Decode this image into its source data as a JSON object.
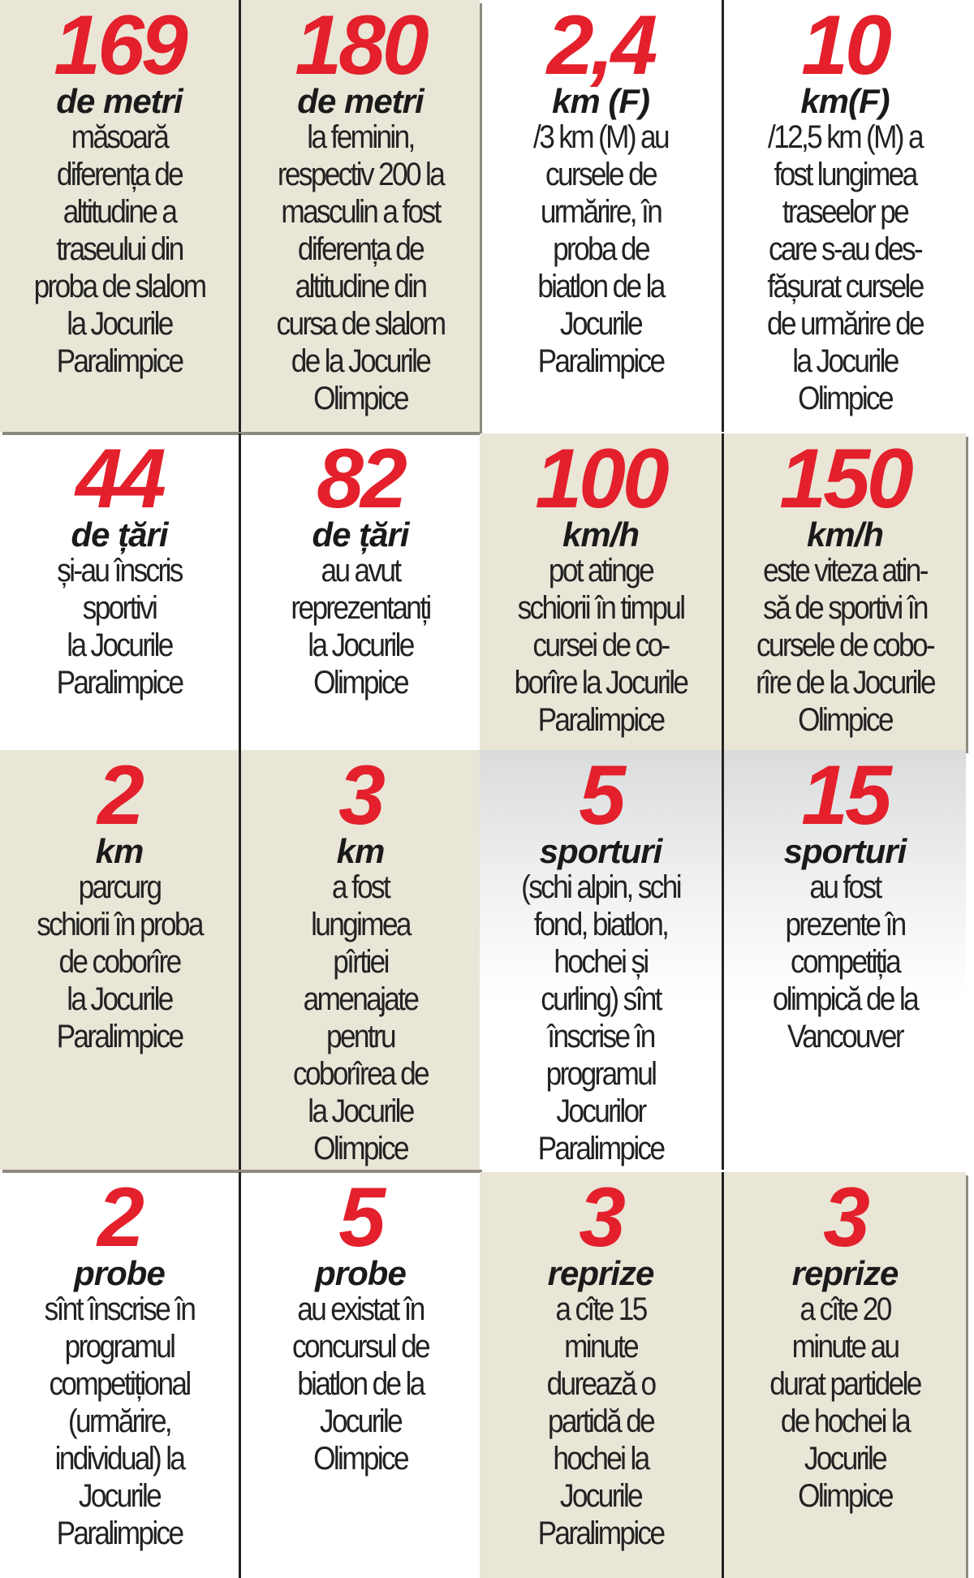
{
  "colors": {
    "number": "#e3202b",
    "beige": "#e9e5d7"
  },
  "rows": [
    [
      {
        "num": "169",
        "unit": "de metri",
        "text": "măsoară\ndiferența de\naltitudine a\ntraseului din\nproba de slalom\nla Jocurile\nParalimpice"
      },
      {
        "num": "180",
        "unit": "de metri",
        "text": "la feminin,\nrespectiv 200 la\nmasculin a fost\ndiferența de\naltitudine din\ncursa de slalom\nde la Jocurile\nOlimpice"
      },
      {
        "num": "2,4",
        "unit": "km (F)",
        "text": "/3 km (M) au\ncursele de\nurmărire, în\nproba de\nbiatlon de la\nJocurile\nParalimpice"
      },
      {
        "num": "10",
        "unit": "km(F)",
        "text": "/12,5 km (M) a\nfost lungimea\ntraseelor pe\ncare s-au des-\nfășurat cursele\nde urmărire de\nla Jocurile\nOlimpice"
      }
    ],
    [
      {
        "num": "44",
        "unit": "de țări",
        "text": "și-au înscris\nsportivi\nla Jocurile\nParalimpice"
      },
      {
        "num": "82",
        "unit": "de țări",
        "text": "au avut\nreprezentanți\nla Jocurile\nOlimpice"
      },
      {
        "num": "100",
        "unit": "km/h",
        "text": "pot atinge\nschiorii în timpul\ncursei de co-\nborîre la Jocurile\nParalimpice"
      },
      {
        "num": "150",
        "unit": "km/h",
        "text": "este viteza atin-\nsă de sportivi în\ncursele de cobo-\nrîre de la Jocurile\nOlimpice"
      }
    ],
    [
      {
        "num": "2",
        "unit": "km",
        "text": "parcurg\nschiorii în proba\nde coborîre\nla Jocurile\nParalimpice"
      },
      {
        "num": "3",
        "unit": "km",
        "text": "a fost\nlungimea\npîrtiei\namenajate\npentru\ncoborîrea de\nla Jocurile\nOlimpice"
      },
      {
        "num": "5",
        "unit": "sporturi",
        "text": "(schi alpin, schi\nfond, biatlon,\nhochei și\ncurling) sînt\nînscrise în\nprogramul\nJocurilor\nParalimpice"
      },
      {
        "num": "15",
        "unit": "sporturi",
        "text": "au fost\nprezente în\ncompetiția\nolimpică de la\nVancouver"
      }
    ],
    [
      {
        "num": "2",
        "unit": "probe",
        "text": "sînt înscrise în\nprogramul\ncompetițional\n(urmărire,\nindividual) la\nJocurile\nParalimpice"
      },
      {
        "num": "5",
        "unit": "probe",
        "text": "au existat în\nconcursul de\nbiatlon de la\nJocurile\nOlimpice"
      },
      {
        "num": "3",
        "unit": "reprize",
        "text": "a cîte 15\nminute\ndurează o\npartidă de\nhochei la\nJocurile\nParalimpice"
      },
      {
        "num": "3",
        "unit": "reprize",
        "text": "a cîte 20\nminute au\ndurat partidele\nde hochei la\nJocurile\nOlimpice"
      }
    ]
  ]
}
